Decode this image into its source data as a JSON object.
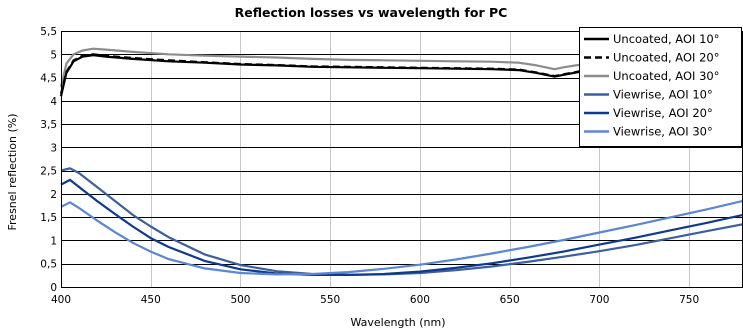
{
  "chart_data": {
    "type": "line",
    "title": "Reflection losses vs wavelength for PC",
    "xlabel": "Wavelength (nm)",
    "ylabel": "Fresnel reflection (%)",
    "xlim": [
      400,
      780
    ],
    "ylim": [
      0,
      5.5
    ],
    "xticks": [
      400,
      450,
      500,
      550,
      600,
      650,
      700,
      750
    ],
    "yticks": [
      0,
      0.5,
      1,
      1.5,
      2,
      2.5,
      3,
      3.5,
      4,
      4.5,
      5,
      5.5
    ],
    "ytick_labels": [
      "0",
      "0,5",
      "1",
      "1,5",
      "2",
      "2,5",
      "3",
      "3,5",
      "4",
      "4,5",
      "5",
      "5,5"
    ],
    "grid": true,
    "legend_position": "top-right",
    "series": [
      {
        "name": "Uncoated, AOI 10°",
        "color": "#000000",
        "dash": "solid",
        "x": [
          400,
          403,
          407,
          412,
          418,
          425,
          440,
          460,
          480,
          500,
          520,
          540,
          560,
          580,
          600,
          620,
          640,
          655,
          665,
          670,
          675,
          680,
          690,
          700,
          720,
          740,
          760,
          780
        ],
        "y": [
          4.1,
          4.6,
          4.85,
          4.95,
          4.98,
          4.95,
          4.9,
          4.85,
          4.82,
          4.78,
          4.76,
          4.73,
          4.72,
          4.71,
          4.7,
          4.69,
          4.68,
          4.66,
          4.6,
          4.56,
          4.52,
          4.56,
          4.63,
          4.65,
          4.66,
          4.67,
          4.67,
          4.66
        ]
      },
      {
        "name": "Uncoated, AOI 20°",
        "color": "#000000",
        "dash": "dashed",
        "x": [
          400,
          403,
          407,
          412,
          418,
          425,
          440,
          460,
          480,
          500,
          520,
          540,
          560,
          580,
          600,
          620,
          640,
          655,
          665,
          670,
          675,
          680,
          690,
          700,
          720,
          740,
          760,
          780
        ],
        "y": [
          4.15,
          4.62,
          4.87,
          4.97,
          5.0,
          4.97,
          4.92,
          4.87,
          4.83,
          4.79,
          4.77,
          4.74,
          4.73,
          4.72,
          4.71,
          4.7,
          4.69,
          4.67,
          4.61,
          4.57,
          4.53,
          4.57,
          4.64,
          4.66,
          4.67,
          4.68,
          4.68,
          4.67
        ]
      },
      {
        "name": "Uncoated, AOI 30°",
        "color": "#8c8c8c",
        "dash": "solid",
        "x": [
          400,
          403,
          407,
          412,
          418,
          425,
          440,
          460,
          480,
          500,
          520,
          540,
          560,
          580,
          600,
          620,
          640,
          655,
          665,
          670,
          675,
          680,
          690,
          700,
          720,
          740,
          760,
          780
        ],
        "y": [
          4.3,
          4.8,
          5.0,
          5.08,
          5.12,
          5.1,
          5.05,
          5.0,
          4.97,
          4.95,
          4.93,
          4.9,
          4.88,
          4.87,
          4.86,
          4.85,
          4.84,
          4.82,
          4.76,
          4.72,
          4.68,
          4.72,
          4.78,
          4.8,
          4.8,
          4.8,
          4.8,
          4.79
        ]
      },
      {
        "name": "Viewrise, AOI 10°",
        "color": "#3d5f9a",
        "dash": "solid",
        "x": [
          400,
          405,
          410,
          420,
          430,
          440,
          450,
          460,
          480,
          500,
          520,
          540,
          560,
          580,
          600,
          620,
          640,
          660,
          680,
          700,
          720,
          740,
          760,
          780
        ],
        "y": [
          2.5,
          2.55,
          2.45,
          2.15,
          1.85,
          1.55,
          1.3,
          1.07,
          0.7,
          0.47,
          0.34,
          0.28,
          0.26,
          0.27,
          0.3,
          0.36,
          0.44,
          0.54,
          0.65,
          0.77,
          0.9,
          1.05,
          1.2,
          1.35
        ]
      },
      {
        "name": "Viewrise, AOI 20°",
        "color": "#0f3a8c",
        "dash": "solid",
        "x": [
          400,
          405,
          410,
          420,
          430,
          440,
          450,
          460,
          480,
          500,
          520,
          540,
          560,
          580,
          600,
          620,
          640,
          660,
          680,
          700,
          720,
          740,
          760,
          780
        ],
        "y": [
          2.2,
          2.3,
          2.15,
          1.85,
          1.57,
          1.3,
          1.05,
          0.86,
          0.56,
          0.38,
          0.29,
          0.26,
          0.26,
          0.28,
          0.33,
          0.41,
          0.51,
          0.63,
          0.76,
          0.91,
          1.06,
          1.22,
          1.38,
          1.55
        ]
      },
      {
        "name": "Viewrise, AOI 30°",
        "color": "#5a86d4",
        "dash": "solid",
        "x": [
          400,
          405,
          410,
          420,
          430,
          440,
          450,
          460,
          480,
          500,
          520,
          540,
          560,
          580,
          600,
          620,
          640,
          660,
          680,
          700,
          720,
          740,
          760,
          780
        ],
        "y": [
          1.72,
          1.82,
          1.7,
          1.43,
          1.18,
          0.95,
          0.76,
          0.6,
          0.4,
          0.3,
          0.27,
          0.28,
          0.32,
          0.39,
          0.48,
          0.59,
          0.72,
          0.86,
          1.01,
          1.17,
          1.33,
          1.5,
          1.67,
          1.85
        ]
      }
    ]
  }
}
